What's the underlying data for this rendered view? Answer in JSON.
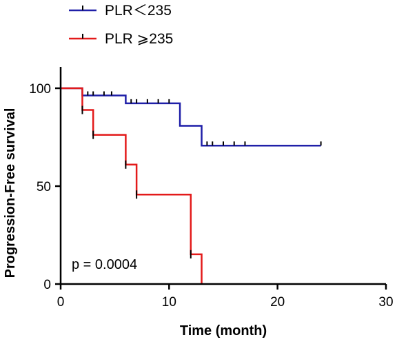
{
  "chart_data": {
    "type": "line",
    "title": "",
    "xlabel": "Time (month)",
    "ylabel": "Progression-Free survival",
    "xlim": [
      0,
      30
    ],
    "ylim": [
      0,
      100
    ],
    "xticks": [
      0,
      10,
      20,
      30
    ],
    "yticks": [
      0,
      50,
      100
    ],
    "grid": false,
    "legend_position": "top-left",
    "annotations": [
      "p = 0.0004"
    ],
    "series": [
      {
        "name": "PLR＜235",
        "color": "#1f1fa8",
        "steps": [
          [
            0,
            100
          ],
          [
            2,
            96.3
          ],
          [
            6,
            92.3
          ],
          [
            11,
            80.8
          ],
          [
            13,
            70.7
          ],
          [
            24,
            70.7
          ]
        ],
        "censor_x": [
          2.5,
          3,
          4,
          4.7,
          6.5,
          7,
          8,
          9,
          10,
          13.5,
          14,
          15,
          16,
          17,
          24
        ]
      },
      {
        "name": "PLR ⩾235",
        "color": "#e31a1a",
        "steps": [
          [
            0,
            100
          ],
          [
            2,
            88.9
          ],
          [
            3,
            76.2
          ],
          [
            6,
            61.0
          ],
          [
            7,
            45.7
          ],
          [
            12,
            15.2
          ],
          [
            13,
            0
          ]
        ],
        "censor_x": [
          2,
          3,
          6,
          7,
          12
        ]
      }
    ]
  }
}
